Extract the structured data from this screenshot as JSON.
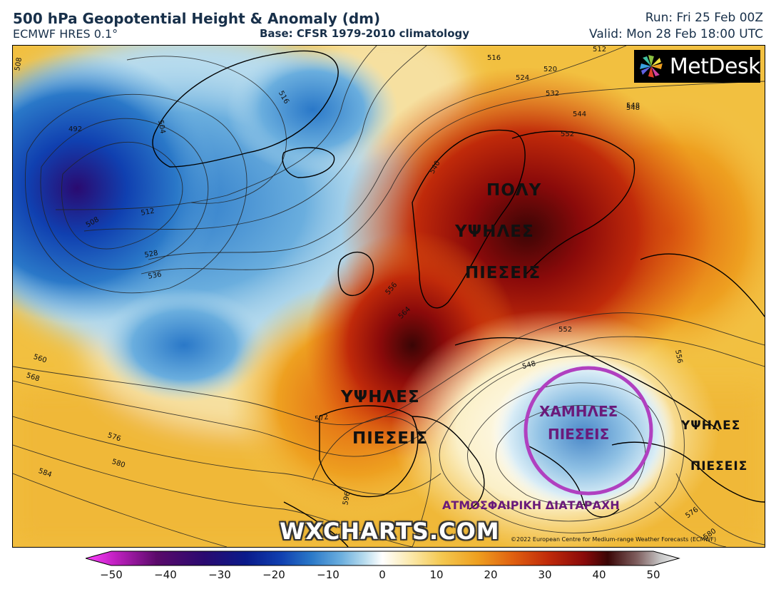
{
  "header": {
    "title": "500 hPa Geopotential Height & Anomaly (dm)",
    "model": "ECMWF HRES 0.1°",
    "base": "Base: CFSR 1979-2010 climatology",
    "run": "Run: Fri 25 Feb 00Z",
    "valid": "Valid: Mon 28 Feb 18:00 UTC"
  },
  "logo": {
    "text": "MetDesk",
    "icon": "pinwheel-icon"
  },
  "watermark": "WXCHARTS.COM",
  "copyright": "©2022 European Centre for Medium-range Weather Forecasts (ECMWF)",
  "annotations": {
    "north_high": [
      "ΠΟΛΥ",
      "ΥΨΗΛΕΣ",
      "ΠΙΕΣΕΙΣ"
    ],
    "west_high": [
      "ΥΨΗΛΕΣ",
      "ΠΙΕΣΕΙΣ"
    ],
    "low": [
      "ΧΑΜΗΛΕΣ",
      "ΠΙΕΣΕΙΣ"
    ],
    "east_high": [
      "ΥΨΗΛΕΣ",
      "ΠΙΕΣΕΙΣ"
    ],
    "disturbance": "ΑΤΜΟΣΦΑΙΡΙΚΗ ΔΙΑΤΑΡΑΧΗ"
  },
  "contour_labels": [
    "508",
    "492",
    "504",
    "516",
    "512",
    "508",
    "528",
    "536",
    "560",
    "568",
    "576",
    "580",
    "584",
    "556",
    "564",
    "572",
    "540",
    "548",
    "552",
    "548",
    "556",
    "516",
    "524",
    "520",
    "532",
    "544",
    "548",
    "552",
    "512",
    "576",
    "580",
    "596"
  ],
  "colorbar": {
    "ticks": [
      "−50",
      "−40",
      "−30",
      "−20",
      "−10",
      "0",
      "10",
      "20",
      "30",
      "40",
      "50"
    ],
    "min": -50,
    "max": 50,
    "colors": [
      "#ff40ff",
      "#c020c0",
      "#5a0a6a",
      "#2a0a70",
      "#0a1a8a",
      "#1040b0",
      "#2a78c8",
      "#6aaede",
      "#b8dcee",
      "#ffffff",
      "#fbe8a8",
      "#f4c850",
      "#eea020",
      "#e06010",
      "#c02a0a",
      "#8a0a0a",
      "#3a0505",
      "#806060",
      "#c8c8c8",
      "#f0f0f0"
    ]
  },
  "circle_color": "#b040c0",
  "accent_purple": "#6a1a7a"
}
